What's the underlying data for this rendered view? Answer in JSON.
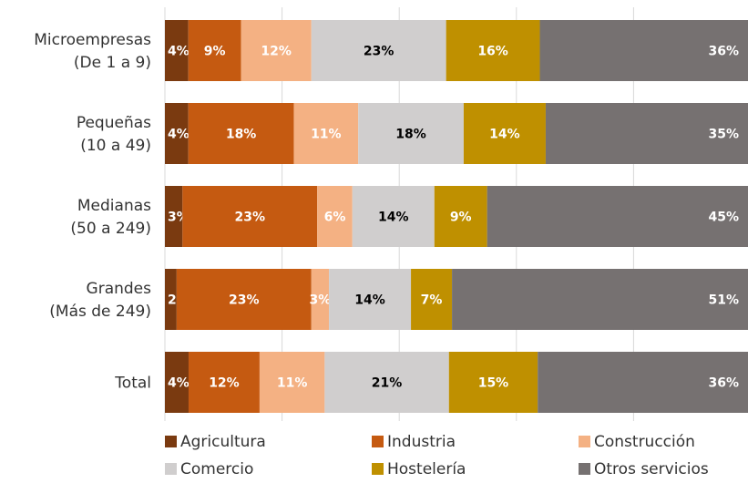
{
  "chart_data": {
    "type": "bar",
    "orientation": "horizontal",
    "stacked": "percent",
    "categories": [
      [
        "Microempresas",
        "(De 1 a 9)"
      ],
      [
        "Pequeñas",
        "(10 a 49)"
      ],
      [
        "Medianas",
        "(50 a 249)"
      ],
      [
        "Grandes",
        "(Más de 249)"
      ],
      [
        "Total"
      ]
    ],
    "series": [
      {
        "name": "Agricultura",
        "color": "#7a3a10",
        "label_color": "#ffffff",
        "values": [
          4,
          4,
          3,
          2,
          4
        ],
        "labels": [
          "4%",
          "4%",
          "3%",
          "2%",
          "4%"
        ]
      },
      {
        "name": "Industria",
        "color": "#c55a11",
        "label_color": "#ffffff",
        "values": [
          9,
          18,
          23,
          23,
          12
        ],
        "labels": [
          "9%",
          "18%",
          "23%",
          "23%",
          "12%"
        ]
      },
      {
        "name": "Construcción",
        "color": "#f4b183",
        "label_color": "#ffffff",
        "values": [
          12,
          11,
          6,
          3,
          11
        ],
        "labels": [
          "12%",
          "11%",
          "6%",
          "3%",
          "11%"
        ]
      },
      {
        "name": "Comercio",
        "color": "#d0cece",
        "label_color": "#000000",
        "values": [
          23,
          18,
          14,
          14,
          21
        ],
        "labels": [
          "23%",
          "18%",
          "14%",
          "14%",
          "21%"
        ]
      },
      {
        "name": "Hostelería",
        "color": "#bf9000",
        "label_color": "#ffffff",
        "values": [
          16,
          14,
          9,
          7,
          15
        ],
        "labels": [
          "16%",
          "14%",
          "9%",
          "7%",
          "15%"
        ]
      },
      {
        "name": "Otros servicios",
        "color": "#767171",
        "label_color": "#ffffff",
        "values": [
          36,
          35,
          45,
          51,
          36
        ],
        "labels": [
          "36%",
          "35%",
          "45%",
          "51%",
          "36%"
        ]
      }
    ],
    "xlim": [
      0,
      100
    ],
    "grid": true,
    "legend_position": "bottom"
  }
}
